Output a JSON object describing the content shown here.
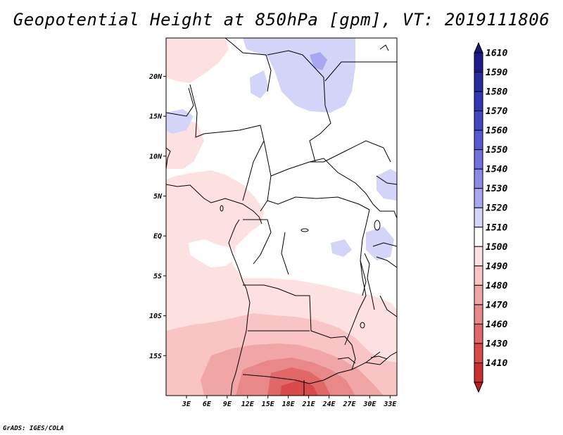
{
  "title": "Geopotential Height at 850hPa [gpm], VT: 2019111806",
  "footer": "GrADS: IGES/COLA",
  "map": {
    "lon_range": [
      0,
      34
    ],
    "lat_range": [
      -20,
      24.8
    ],
    "lat_ticks": [
      {
        "value": 20,
        "label": "20N"
      },
      {
        "value": 15,
        "label": "15N"
      },
      {
        "value": 10,
        "label": "10N"
      },
      {
        "value": 5,
        "label": "5N"
      },
      {
        "value": 0,
        "label": "EQ"
      },
      {
        "value": -5,
        "label": "5S"
      },
      {
        "value": -10,
        "label": "10S"
      },
      {
        "value": -15,
        "label": "15S"
      }
    ],
    "lon_ticks": [
      {
        "value": 3,
        "label": "3E"
      },
      {
        "value": 6,
        "label": "6E"
      },
      {
        "value": 9,
        "label": "9E"
      },
      {
        "value": 12,
        "label": "12E"
      },
      {
        "value": 15,
        "label": "15E"
      },
      {
        "value": 18,
        "label": "18E"
      },
      {
        "value": 21,
        "label": "21E"
      },
      {
        "value": 24,
        "label": "24E"
      },
      {
        "value": 27,
        "label": "27E"
      },
      {
        "value": 30,
        "label": "30E"
      },
      {
        "value": 33,
        "label": "33E"
      }
    ]
  },
  "colorbar": {
    "levels": [
      {
        "label": "1610",
        "color": "#1e1a8c"
      },
      {
        "label": "1590",
        "color": "#2a2aa0"
      },
      {
        "label": "1580",
        "color": "#3535b5"
      },
      {
        "label": "1570",
        "color": "#4646c4"
      },
      {
        "label": "1560",
        "color": "#5858d2"
      },
      {
        "label": "1550",
        "color": "#7070de"
      },
      {
        "label": "1540",
        "color": "#8a8ae8"
      },
      {
        "label": "1530",
        "color": "#a8a8f0"
      },
      {
        "label": "1520",
        "color": "#d4d4f8"
      },
      {
        "label": "1510",
        "color": "#ffffff"
      },
      {
        "label": "1500",
        "color": "#fde0e0"
      },
      {
        "label": "1490",
        "color": "#f8c4c4"
      },
      {
        "label": "1480",
        "color": "#f0a6a6"
      },
      {
        "label": "1470",
        "color": "#e98888"
      },
      {
        "label": "1460",
        "color": "#e06868"
      },
      {
        "label": "1430",
        "color": "#d84a4a"
      },
      {
        "label": "1410",
        "color": "#c83030"
      }
    ],
    "top_color": "#1a1878",
    "bottom_color": "#b82020"
  }
}
